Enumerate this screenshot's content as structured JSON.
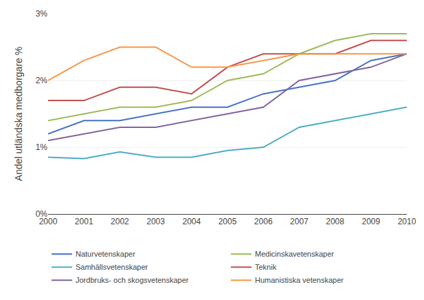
{
  "chart_data": {
    "type": "line",
    "ylabel": "Andel utländska medborgare %",
    "x": [
      2000,
      2001,
      2002,
      2003,
      2004,
      2005,
      2006,
      2007,
      2008,
      2009,
      2010
    ],
    "series": [
      {
        "name": "Naturvetenskaper",
        "color": "#4472C4",
        "values": [
          0.012,
          0.014,
          0.014,
          0.015,
          0.016,
          0.016,
          0.018,
          0.019,
          0.02,
          0.023,
          0.024
        ]
      },
      {
        "name": "Medicinskavetenskaper",
        "color": "#9BBB59",
        "values": [
          0.014,
          0.015,
          0.016,
          0.016,
          0.017,
          0.02,
          0.021,
          0.024,
          0.026,
          0.027,
          0.027
        ]
      },
      {
        "name": "Samhällsvetenskaper",
        "color": "#4BACC6",
        "values": [
          0.0085,
          0.0083,
          0.0093,
          0.0085,
          0.0085,
          0.0095,
          0.01,
          0.013,
          0.014,
          0.015,
          0.016
        ]
      },
      {
        "name": "Teknik",
        "color": "#C0504D",
        "values": [
          0.017,
          0.017,
          0.019,
          0.019,
          0.018,
          0.022,
          0.024,
          0.024,
          0.024,
          0.026,
          0.026
        ]
      },
      {
        "name": "Jordbruks- och skogsvetenskaper",
        "color": "#8064A2",
        "values": [
          0.011,
          0.012,
          0.013,
          0.013,
          0.014,
          0.015,
          0.016,
          0.02,
          0.021,
          0.022,
          0.024
        ]
      },
      {
        "name": "Humanistiska vetenskaper",
        "color": "#F79646",
        "values": [
          0.02,
          0.023,
          0.025,
          0.025,
          0.022,
          0.022,
          0.023,
          0.024,
          0.024,
          0.024,
          0.024
        ]
      }
    ],
    "xlim": [
      2000,
      2010
    ],
    "xticks": [
      2000,
      2001,
      2002,
      2003,
      2004,
      2005,
      2006,
      2007,
      2008,
      2009,
      2010
    ],
    "ylim": [
      0,
      0.03
    ],
    "yticks": [
      {
        "value": 0,
        "label": "0%"
      },
      {
        "value": 0.01,
        "label": "1%"
      },
      {
        "value": 0.02,
        "label": "2%"
      },
      {
        "value": 0.03,
        "label": "3%"
      }
    ],
    "grid": "y",
    "legend": "bottom"
  }
}
